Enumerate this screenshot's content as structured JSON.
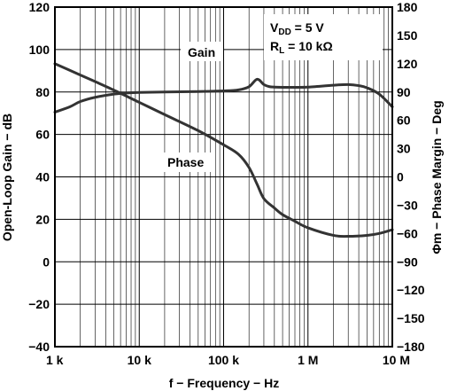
{
  "chart_data": {
    "type": "line",
    "xlabel": "f − Frequency − Hz",
    "ylabel_left": "Open-Loop Gain − dB",
    "ylabel_right": "Φm − Phase Margin − Deg",
    "x_scale": "log",
    "xlim": [
      1000,
      10000000
    ],
    "ylim_left": [
      -40,
      120
    ],
    "ylim_right": [
      -180,
      180
    ],
    "x_ticks": [
      1000,
      10000,
      100000,
      1000000,
      10000000
    ],
    "x_tick_labels": [
      "1 k",
      "10 k",
      "100 k",
      "1 M",
      "10 M"
    ],
    "y_left_ticks": [
      -40,
      -20,
      0,
      20,
      40,
      60,
      80,
      100,
      120
    ],
    "y_left_tick_labels": [
      "−40",
      "−20",
      "0",
      "20",
      "40",
      "60",
      "80",
      "100",
      "120"
    ],
    "y_right_ticks": [
      -180,
      -150,
      -120,
      -90,
      -60,
      -30,
      0,
      30,
      60,
      90,
      120,
      150,
      180
    ],
    "y_right_tick_labels": [
      "−180",
      "−150",
      "−120",
      "−90",
      "−60",
      "−30",
      "0",
      "30",
      "60",
      "90",
      "120",
      "150",
      "180"
    ],
    "grid": true,
    "annotations": {
      "gain_label": "Gain",
      "phase_label": "Phase",
      "vdd_main": "V",
      "vdd_sub": "DD",
      "vdd_rest": " = 5 V",
      "rl_main": "R",
      "rl_sub": "L",
      "rl_rest": " = 10 kΩ"
    },
    "series": [
      {
        "name": "Gain",
        "axis": "left",
        "x": [
          1000,
          1500,
          2000,
          3000,
          5000,
          7000,
          10000,
          20000,
          50000,
          100000,
          150000,
          200000,
          250000,
          300000,
          350000,
          400000,
          500000,
          700000,
          1000000,
          2000000,
          3000000,
          4000000,
          5000000,
          7000000,
          10000000
        ],
        "y": [
          70.5,
          73,
          75.5,
          77.5,
          79,
          79.5,
          79.8,
          80,
          80.2,
          80.5,
          81,
          82.5,
          86,
          83.5,
          82.5,
          82.3,
          82.2,
          82.2,
          82.3,
          83.2,
          83.5,
          83,
          82,
          79,
          73
        ]
      },
      {
        "name": "Phase",
        "axis": "right",
        "x": [
          1000,
          2000,
          3000,
          5000,
          10000,
          20000,
          50000,
          100000,
          150000,
          200000,
          250000,
          300000,
          400000,
          500000,
          700000,
          1000000,
          2000000,
          3000000,
          5000000,
          7000000,
          10000000
        ],
        "y": [
          120,
          108,
          101,
          92,
          79,
          66,
          49,
          34,
          24,
          10,
          -8,
          -23,
          -33,
          -40,
          -47,
          -54,
          -62,
          -63,
          -62,
          -60,
          -56
        ]
      }
    ]
  }
}
